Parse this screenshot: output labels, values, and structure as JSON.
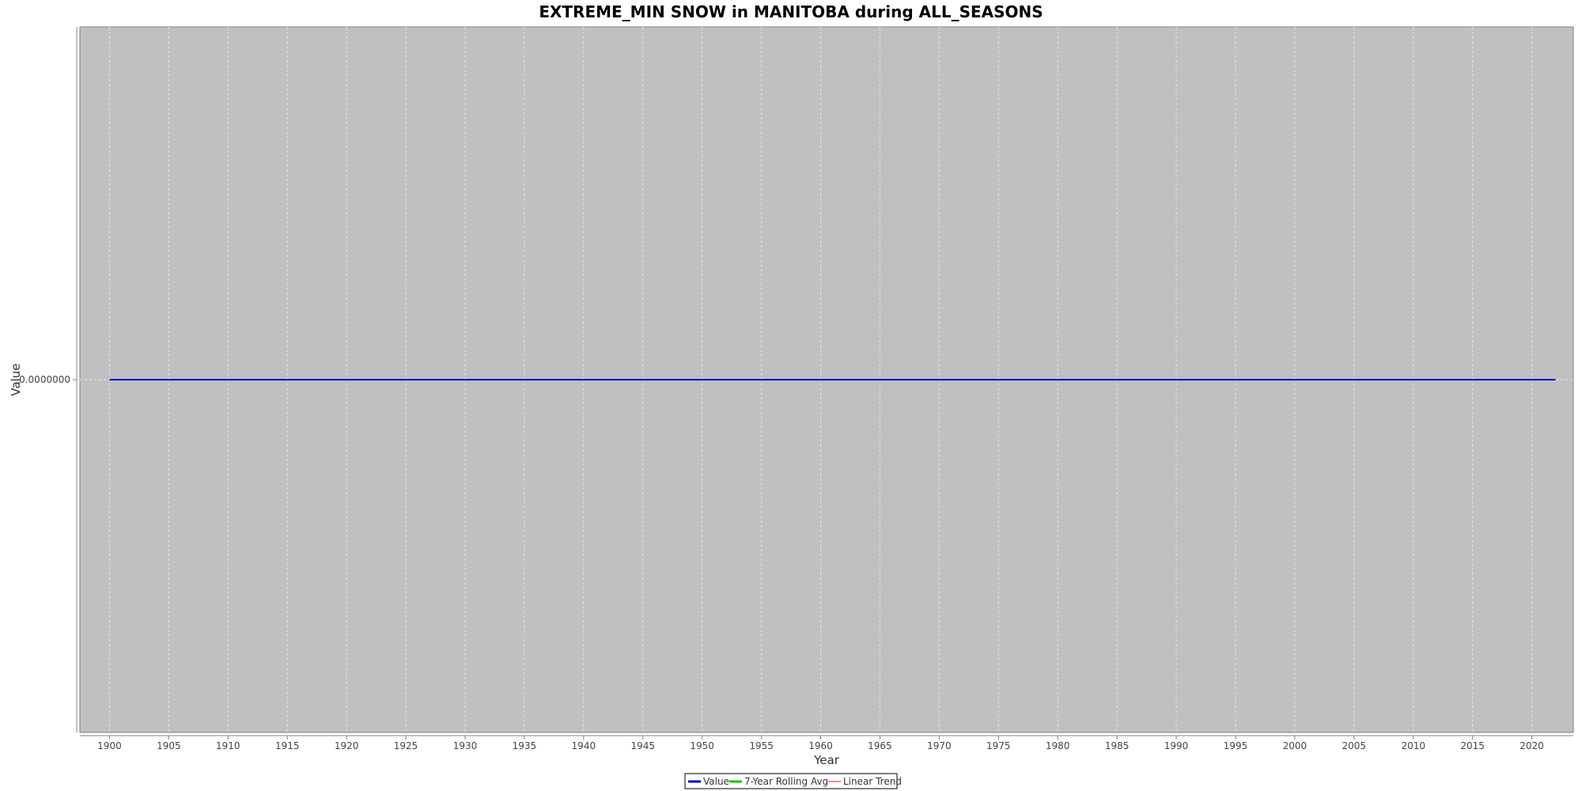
{
  "chart_data": {
    "type": "line",
    "title": "EXTREME_MIN SNOW in MANITOBA during ALL_SEASONS",
    "xlabel": "Year",
    "ylabel": "Value",
    "x_range": [
      1897.5,
      2023.5
    ],
    "xticks": [
      1900,
      1905,
      1910,
      1915,
      1920,
      1925,
      1930,
      1935,
      1940,
      1945,
      1950,
      1955,
      1960,
      1965,
      1970,
      1975,
      1980,
      1985,
      1990,
      1995,
      2000,
      2005,
      2010,
      2015,
      2020
    ],
    "yticks": [
      0
    ],
    "ytick_labels": [
      "0.0000000"
    ],
    "grid": true,
    "legend_position": "bottom-center",
    "series": [
      {
        "name": "Value",
        "color": "#0000cc",
        "x_start": 1900,
        "x_end": 2022,
        "constant_value": 0
      },
      {
        "name": "7-Year Rolling Avg",
        "color": "#00cc00",
        "x_start": 1906,
        "x_end": 2022,
        "constant_value": 0
      },
      {
        "name": "Linear Trend",
        "color": "#ff6666",
        "x_start": 1900,
        "x_end": 2022,
        "constant_value": 0
      }
    ],
    "colors": {
      "plot_background": "#c0c0c0",
      "gridline": "#e6e6e6",
      "axis": "#808080"
    }
  }
}
